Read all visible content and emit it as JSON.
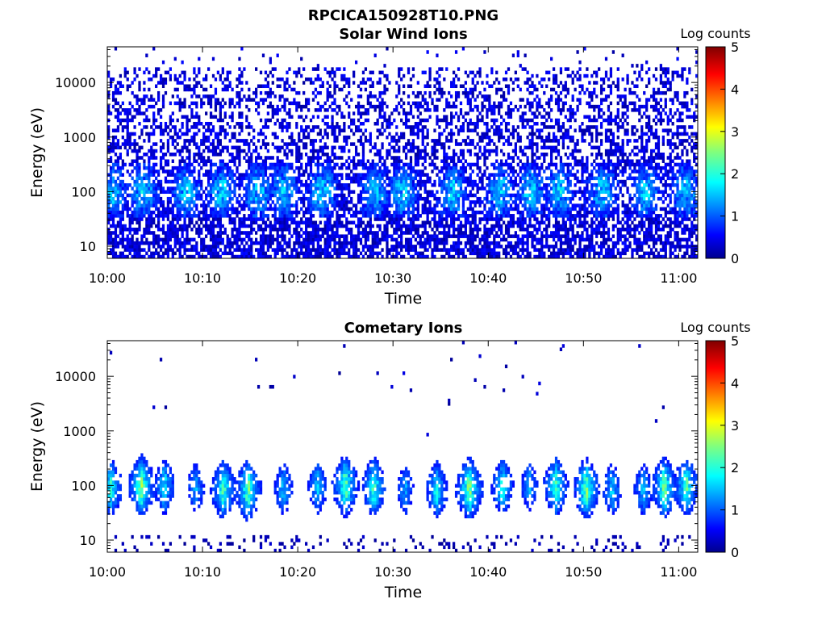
{
  "figure": {
    "title": "RPCICA150928T10.PNG"
  },
  "colorbar": {
    "label": "Log counts",
    "ticks": [
      0,
      1,
      2,
      3,
      4,
      5
    ],
    "range": [
      0,
      5
    ],
    "colormap": "jet"
  },
  "chart_data": [
    {
      "type": "heatmap",
      "title": "Solar Wind Ions",
      "xlabel": "Time",
      "ylabel": "Energy (eV)",
      "x_ticks": [
        "10:00",
        "10:10",
        "10:20",
        "10:30",
        "10:40",
        "10:50",
        "11:00"
      ],
      "x_range": [
        "10:00",
        "11:02"
      ],
      "y_scale": "log",
      "y_ticks": [
        10,
        100,
        1000,
        10000
      ],
      "y_tick_labels": [
        "10",
        "100",
        "1000",
        "10000"
      ],
      "y_range": [
        6,
        45000
      ],
      "z_label": "Log counts",
      "z_range": [
        0,
        5
      ],
      "colormap": "jet",
      "pattern": {
        "kind": "solar_wind",
        "time_bins": 248,
        "energy_bins": 62,
        "enhancement_times_min": [
          0.5,
          3.8,
          8.3,
          12.0,
          15.8,
          18.5,
          22.6,
          28.1,
          31.0,
          36.3,
          41.2,
          44.5,
          47.5,
          52.0,
          56.5,
          60.7
        ],
        "typical_log_counts": 0.4,
        "peak_log_counts": 2.1
      }
    },
    {
      "type": "heatmap",
      "title": "Cometary Ions",
      "xlabel": "Time",
      "ylabel": "Energy (eV)",
      "x_ticks": [
        "10:00",
        "10:10",
        "10:20",
        "10:30",
        "10:40",
        "10:50",
        "11:00"
      ],
      "x_range": [
        "10:00",
        "11:02"
      ],
      "y_scale": "log",
      "y_ticks": [
        10,
        100,
        1000,
        10000
      ],
      "y_tick_labels": [
        "10",
        "100",
        "1000",
        "10000"
      ],
      "y_range": [
        6,
        45000
      ],
      "z_label": "Log counts",
      "z_range": [
        0,
        5
      ],
      "colormap": "jet",
      "pattern": {
        "kind": "cometary_bursts",
        "time_bins": 248,
        "energy_bins": 62,
        "burst_centers_min": [
          0.4,
          3.6,
          6.0,
          9.3,
          12.2,
          14.8,
          18.5,
          22.1,
          25.0,
          28.0,
          31.3,
          34.6,
          38.0,
          41.5,
          44.3,
          47.1,
          50.3,
          53.0,
          56.3,
          58.5,
          60.8
        ],
        "burst_peak_energy_ev": 90,
        "peak_log_counts": 2.9
      }
    }
  ]
}
